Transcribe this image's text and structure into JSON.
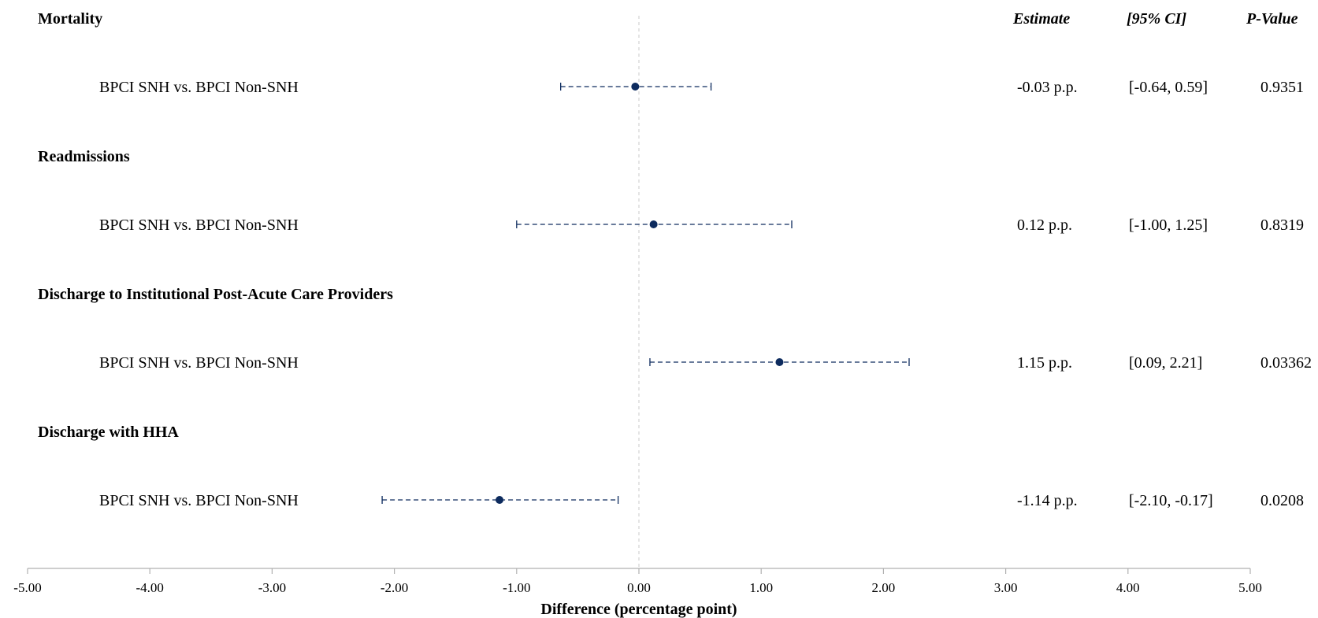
{
  "headers": {
    "estimate": "Estimate",
    "ci": "[95% CI]",
    "pvalue": "P-Value"
  },
  "groups": [
    {
      "title": "Mortality",
      "row_label": "BPCI SNH vs. BPCI Non-SNH",
      "estimate": "-0.03 p.p.",
      "ci": "[-0.64, 0.59]",
      "pvalue": "0.9351"
    },
    {
      "title": "Readmissions",
      "row_label": "BPCI SNH vs. BPCI Non-SNH",
      "estimate": "0.12 p.p.",
      "ci": "[-1.00, 1.25]",
      "pvalue": "0.8319"
    },
    {
      "title": "Discharge to Institutional Post-Acute Care Providers",
      "row_label": "BPCI SNH vs. BPCI Non-SNH",
      "estimate": "1.15 p.p.",
      "ci": "[0.09, 2.21]",
      "pvalue": "0.03362"
    },
    {
      "title": "Discharge with HHA",
      "row_label": "BPCI SNH vs. BPCI Non-SNH",
      "estimate": "-1.14 p.p.",
      "ci": "[-2.10, -0.17]",
      "pvalue": "0.0208"
    }
  ],
  "colors": {
    "marker": "#0d2b5e",
    "axis": "#b0b0b0",
    "reference_line": "#c8c8c8"
  },
  "chart_data": {
    "type": "scatter",
    "subtype": "forest-plot",
    "title": "",
    "xlabel": "Difference (percentage point)",
    "xlim": [
      -5,
      5
    ],
    "xticks": [
      -5,
      -4,
      -3,
      -2,
      -1,
      0,
      1,
      2,
      3,
      4,
      5
    ],
    "xtick_labels": [
      "-5.00",
      "-4.00",
      "-3.00",
      "-2.00",
      "-1.00",
      "0.00",
      "1.00",
      "2.00",
      "3.00",
      "4.00",
      "5.00"
    ],
    "reference_line": 0,
    "grid": false,
    "series": [
      {
        "categories": [
          "Mortality",
          "Readmissions",
          "Discharge to Institutional Post-Acute Care Providers",
          "Discharge with HHA"
        ],
        "estimates": [
          -0.03,
          0.12,
          1.15,
          -1.14
        ],
        "ci_low": [
          -0.64,
          -1.0,
          0.09,
          -2.1
        ],
        "ci_high": [
          0.59,
          1.25,
          2.21,
          -0.17
        ]
      }
    ]
  }
}
